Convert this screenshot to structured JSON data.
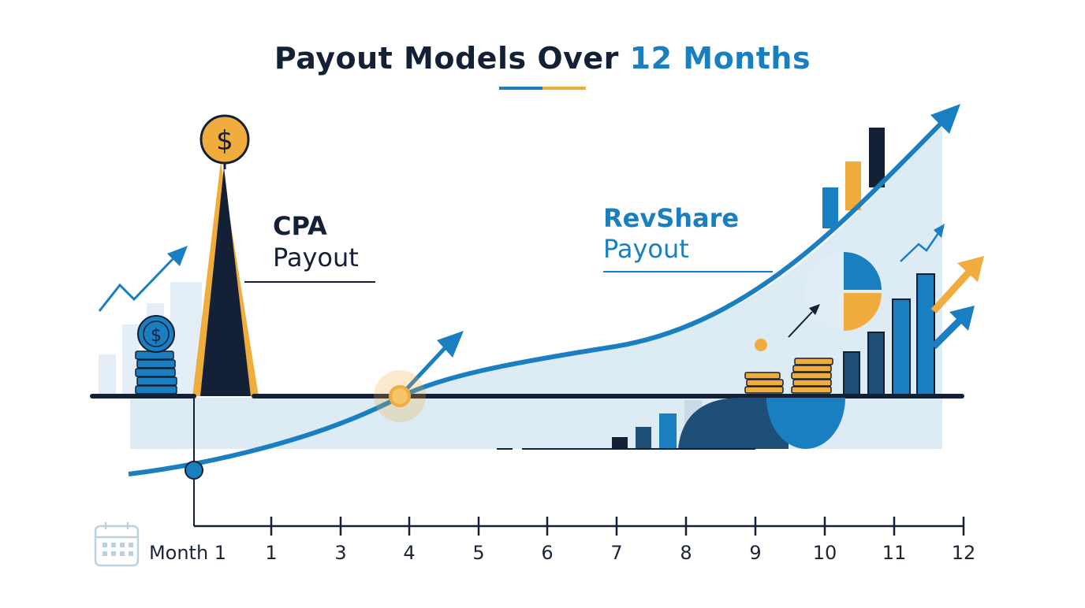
{
  "title": {
    "main": "Payout Models Over",
    "accent": "12 Months"
  },
  "cpa_label": {
    "line1": "CPA",
    "line2": "Payout"
  },
  "revshare_label": {
    "line1": "RevShare",
    "line2": "Payout"
  },
  "axis": {
    "ticks": [
      "Month 1",
      "1",
      "3",
      "4",
      "5",
      "6",
      "7",
      "8",
      "9",
      "10",
      "11",
      "12"
    ]
  },
  "colors": {
    "navy": "#142036",
    "blue": "#1a7fc1",
    "orange": "#f0ac3c",
    "light_blue": "#d7e8f3"
  },
  "icons": [
    "calendar-icon",
    "dollar-coin-icon",
    "coin-stack-icon",
    "trend-arrow-icon",
    "pie-chart-icon",
    "bar-chart-icon"
  ]
}
